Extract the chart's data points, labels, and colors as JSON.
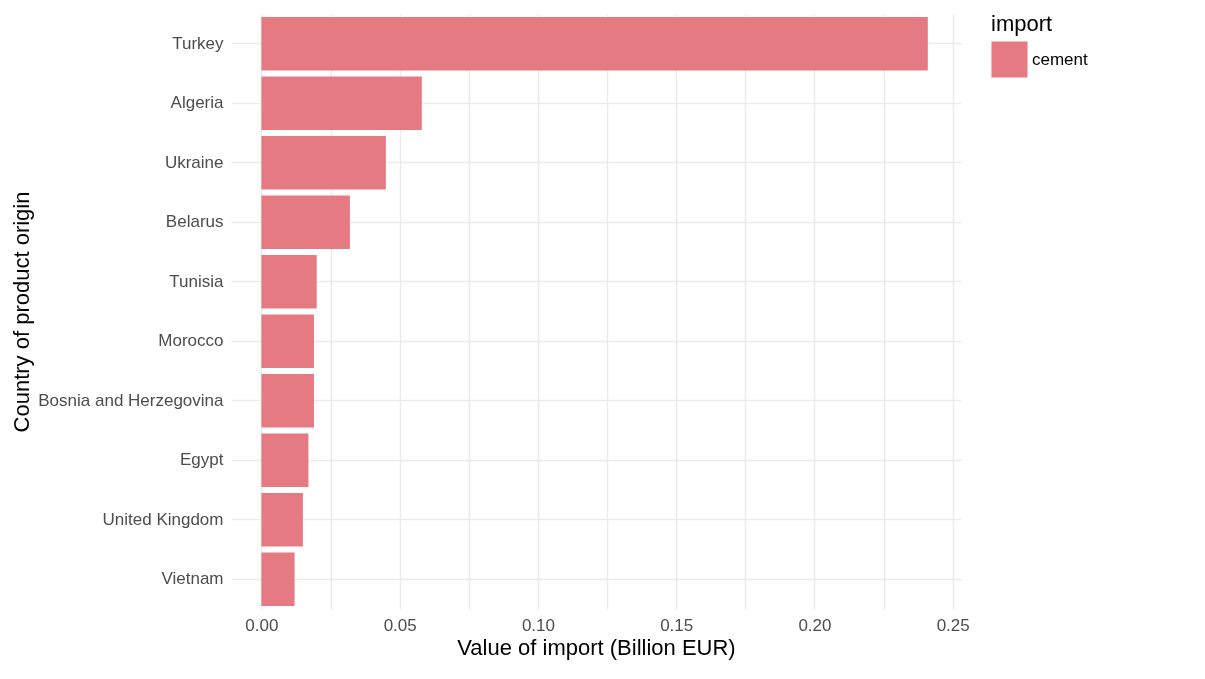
{
  "chart_data": {
    "type": "bar",
    "orientation": "horizontal",
    "xlabel": "Value of import (Billion EUR)",
    "ylabel": "Country of product origin",
    "legend_title": "import",
    "legend": "right",
    "categories": [
      "Turkey",
      "Algeria",
      "Ukraine",
      "Belarus",
      "Tunisia",
      "Morocco",
      "Bosnia and Herzegovina",
      "Egypt",
      "United Kingdom",
      "Vietnam"
    ],
    "series": [
      {
        "name": "cement",
        "color": "#e57a82",
        "values": [
          0.241,
          0.058,
          0.045,
          0.032,
          0.02,
          0.019,
          0.019,
          0.017,
          0.015,
          0.012
        ]
      }
    ],
    "xlim": [
      -0.011,
      0.253
    ],
    "xticks": [
      {
        "value": 0,
        "label": "0.00"
      },
      {
        "value": 0.025,
        "label": null
      },
      {
        "value": 0.05,
        "label": "0.05"
      },
      {
        "value": 0.075,
        "label": null
      },
      {
        "value": 0.1,
        "label": "0.10"
      },
      {
        "value": 0.125,
        "label": null
      },
      {
        "value": 0.15,
        "label": "0.15"
      },
      {
        "value": 0.175,
        "label": null
      },
      {
        "value": 0.2,
        "label": "0.20"
      },
      {
        "value": 0.225,
        "label": null
      },
      {
        "value": 0.25,
        "label": "0.25"
      }
    ],
    "grid": true
  }
}
